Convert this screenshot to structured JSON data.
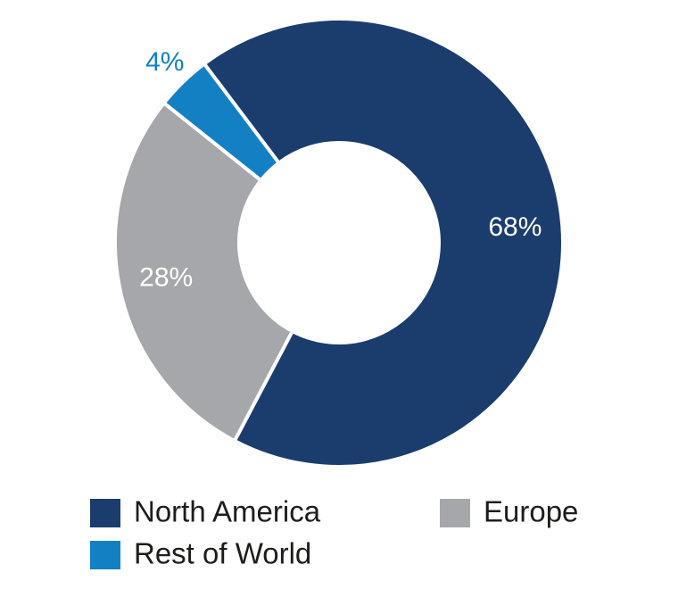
{
  "chart_data": {
    "type": "donut",
    "categories": [
      "North America",
      "Europe",
      "Rest of World"
    ],
    "values": [
      68,
      28,
      4
    ],
    "value_labels": [
      "68%",
      "28%",
      "4%"
    ],
    "colors": [
      "#1a3d6e",
      "#a6a7aa",
      "#1380c4"
    ]
  }
}
